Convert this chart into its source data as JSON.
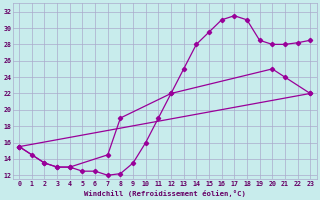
{
  "xlabel": "Windchill (Refroidissement éolien,°C)",
  "background_color": "#c8ecec",
  "line_color": "#990099",
  "grid_color": "#aaaacc",
  "xlim": [
    -0.5,
    23.5
  ],
  "ylim": [
    11.5,
    33.0
  ],
  "yticks": [
    12,
    14,
    16,
    18,
    20,
    22,
    24,
    26,
    28,
    30,
    32
  ],
  "xticks": [
    0,
    1,
    2,
    3,
    4,
    5,
    6,
    7,
    8,
    9,
    10,
    11,
    12,
    13,
    14,
    15,
    16,
    17,
    18,
    19,
    20,
    21,
    22,
    23
  ],
  "line1_x": [
    0,
    1,
    2,
    3,
    4,
    5,
    6,
    7,
    8,
    9,
    10,
    11,
    12,
    13,
    14,
    15,
    16,
    17,
    18,
    19,
    20,
    21,
    22,
    23
  ],
  "line1_y": [
    15.5,
    14.5,
    13.5,
    13.0,
    13.0,
    12.5,
    12.5,
    12.0,
    12.2,
    13.5,
    16.0,
    19.0,
    22.0,
    25.0,
    28.0,
    29.5,
    31.0,
    31.5,
    31.0,
    28.5,
    28.0,
    28.0,
    28.2,
    28.5
  ],
  "line2_x": [
    0,
    2,
    3,
    4,
    7,
    8,
    12,
    20,
    21,
    23
  ],
  "line2_y": [
    15.5,
    13.5,
    13.0,
    13.0,
    14.5,
    19.0,
    22.0,
    25.0,
    24.0,
    22.0
  ],
  "line3_x": [
    0,
    23
  ],
  "line3_y": [
    15.5,
    22.0
  ]
}
